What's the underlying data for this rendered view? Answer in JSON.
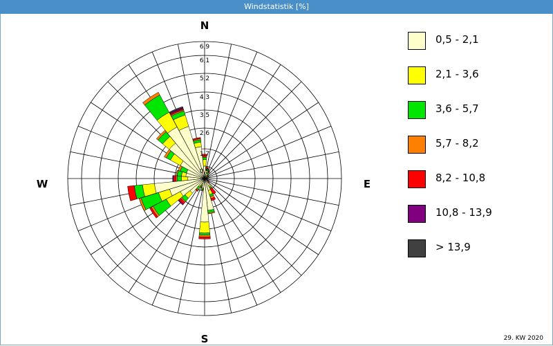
{
  "window": {
    "title": "Windstatistik [%]"
  },
  "footer": {
    "week_label": "29. KW 2020"
  },
  "chart_data": {
    "type": "wind-rose",
    "title": "Windstatistik [%]",
    "directions": [
      "N",
      "NbE",
      "NNE",
      "NEbN",
      "NE",
      "NEbE",
      "ENE",
      "EbN",
      "E",
      "EbS",
      "ESE",
      "SEbE",
      "SE",
      "SEbS",
      "SSE",
      "SbE",
      "S",
      "SbW",
      "SSW",
      "SWbS",
      "SW",
      "SWbW",
      "WSW",
      "WbS",
      "W",
      "WbN",
      "WNW",
      "NWbW",
      "NW",
      "NWbN",
      "NNW",
      "NbW"
    ],
    "compass_labels": {
      "north": "N",
      "east": "E",
      "south": "S",
      "west": "W"
    },
    "radial_tick_labels": [
      "0,9",
      "1,7",
      "2,6",
      "3,5",
      "4,3",
      "5,2",
      "6,1",
      "6,9"
    ],
    "radial_ticks": [
      0.9,
      1.7,
      2.6,
      3.5,
      4.3,
      5.2,
      6.1,
      6.9
    ],
    "rmax": 6.9,
    "colors": [
      "#ffffcc",
      "#ffff00",
      "#00e600",
      "#ff8000",
      "#ff0000",
      "#800080",
      "#404040"
    ],
    "speed_classes": [
      "0,5 - 2,1",
      "2,1 - 3,6",
      "3,6 - 5,7",
      "5,7 - 8,2",
      "8,2 - 10,8",
      "10,8 - 13,9",
      "> 13,9"
    ],
    "series": [
      {
        "name": "0,5 - 2,1",
        "values": [
          0.9,
          0.6,
          0.4,
          0.3,
          0.2,
          0.2,
          0.1,
          0.1,
          0.1,
          0.1,
          0.1,
          0.15,
          0.2,
          0.6,
          0.9,
          1.8,
          2.3,
          0.7,
          0.4,
          0.6,
          1.2,
          1.6,
          2.0,
          2.6,
          1.1,
          1.2,
          1.2,
          1.6,
          2.4,
          3.0,
          2.8,
          1.8
        ]
      },
      {
        "name": "2,1 - 3,6",
        "values": [
          0.3,
          0.0,
          0.2,
          0.1,
          0.05,
          0.05,
          0.0,
          0.0,
          0.0,
          0.0,
          0.0,
          0.05,
          0.05,
          0.1,
          0.2,
          0.0,
          0.5,
          0.0,
          0.1,
          0.1,
          0.3,
          0.7,
          0.5,
          0.6,
          0.3,
          0.2,
          0.0,
          0.5,
          0.4,
          0.8,
          0.6,
          0.2
        ]
      },
      {
        "name": "3,6 - 5,7",
        "values": [
          0.1,
          0.1,
          0.1,
          0.1,
          0.05,
          0.05,
          0.0,
          0.0,
          0.0,
          0.0,
          0.0,
          0.05,
          0.05,
          0.1,
          0.1,
          0.1,
          0.1,
          0.1,
          0.1,
          0.2,
          0.2,
          0.7,
          0.9,
          0.4,
          0.2,
          0.2,
          0.3,
          0.2,
          0.3,
          0.9,
          0.2,
          0.1
        ]
      },
      {
        "name": "5,7 - 8,2",
        "values": [
          0.05,
          0.05,
          0.1,
          0.05,
          0.02,
          0.02,
          0.0,
          0.0,
          0.0,
          0.0,
          0.0,
          0.02,
          0.05,
          0.05,
          0.1,
          0.05,
          0.1,
          0.05,
          0.05,
          0.05,
          0.05,
          0.1,
          0.1,
          0.0,
          0.05,
          0.05,
          0.1,
          0.1,
          0.1,
          0.15,
          0.05,
          0.05
        ]
      },
      {
        "name": "8,2 - 10,8",
        "values": [
          0.1,
          0.1,
          0.0,
          0.05,
          0.02,
          0.02,
          0.0,
          0.0,
          0.0,
          0.0,
          0.0,
          0.02,
          0.1,
          0.3,
          0.1,
          0.0,
          0.1,
          0.0,
          0.05,
          0.05,
          0.1,
          0.1,
          0.0,
          0.3,
          0.1,
          0.0,
          0.0,
          0.0,
          0.0,
          0.0,
          0.05,
          0.05
        ]
      },
      {
        "name": "10,8 - 13,9",
        "values": [
          0.0,
          0.0,
          0.0,
          0.0,
          0.0,
          0.0,
          0.0,
          0.0,
          0.0,
          0.0,
          0.0,
          0.0,
          0.0,
          0.0,
          0.0,
          0.0,
          0.0,
          0.0,
          0.0,
          0.0,
          0.05,
          0.0,
          0.0,
          0.0,
          0.05,
          0.0,
          0.0,
          0.0,
          0.0,
          0.0,
          0.05,
          0.0
        ]
      },
      {
        "name": "> 13,9",
        "values": [
          0.0,
          0.0,
          0.0,
          0.0,
          0.0,
          0.0,
          0.0,
          0.0,
          0.0,
          0.0,
          0.0,
          0.0,
          0.0,
          0.0,
          0.0,
          0.0,
          0.0,
          0.0,
          0.0,
          0.0,
          0.0,
          0.0,
          0.0,
          0.0,
          0.0,
          0.0,
          0.0,
          0.0,
          0.0,
          0.0,
          0.05,
          0.0
        ]
      }
    ]
  }
}
